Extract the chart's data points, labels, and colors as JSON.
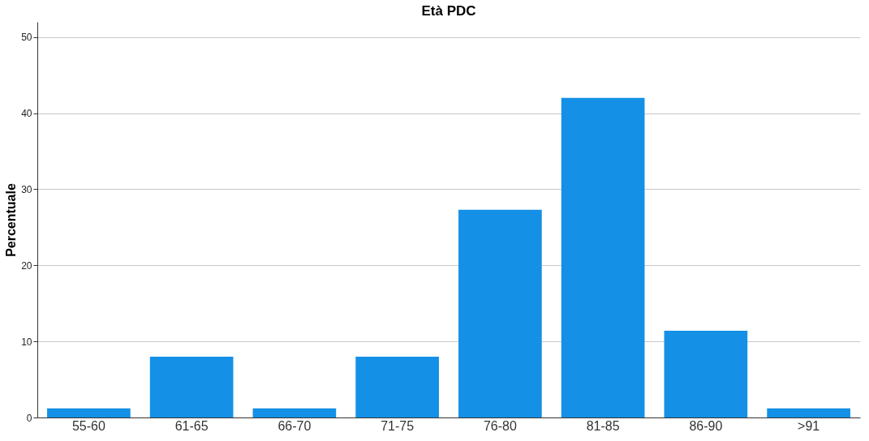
{
  "chart_data": {
    "type": "bar",
    "title": "Età PDC",
    "ylabel": "Percentuale",
    "categories": [
      "55-60",
      "61-65",
      "66-70",
      "71-75",
      "76-80",
      "81-85",
      "86-90",
      ">91"
    ],
    "values": [
      1.2,
      8.0,
      1.2,
      8.0,
      27.3,
      42.0,
      11.4,
      1.2
    ],
    "color": "#1490e6",
    "ylim": [
      0,
      52
    ],
    "yticks": [
      0,
      10,
      20,
      30,
      40,
      50
    ],
    "grid": "y"
  }
}
